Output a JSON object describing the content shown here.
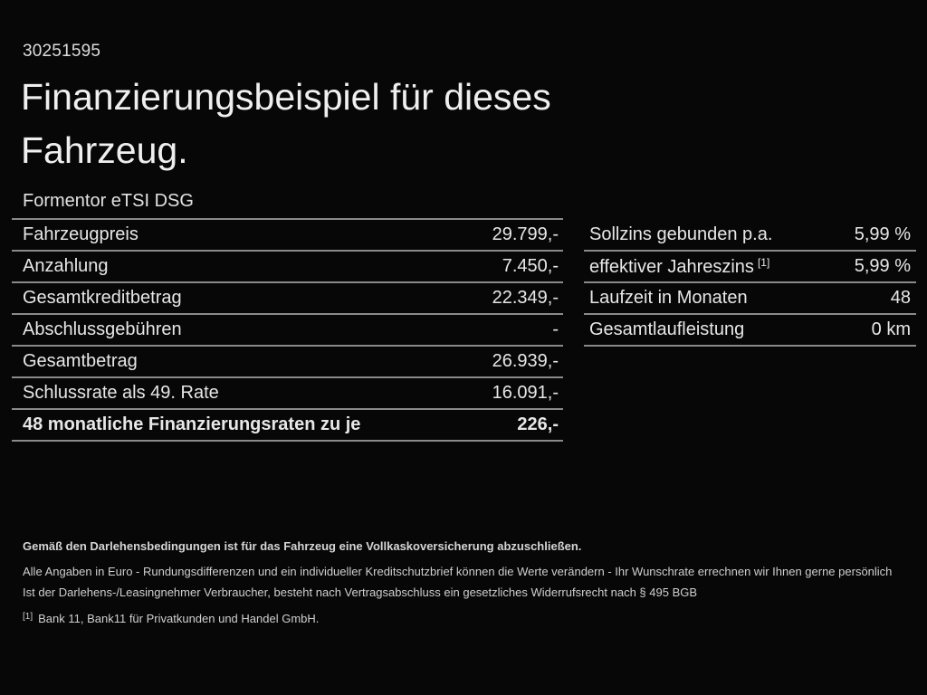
{
  "colors": {
    "background": "#070707",
    "text": "#e7e7e7",
    "separator": "#8a8a8a",
    "muted": "#d6d6d6"
  },
  "header": {
    "document_number": "30251595",
    "title": "Finanzierungsbeispiel für dieses Fahrzeug.",
    "vehicle_model": "Formentor eTSI DSG"
  },
  "financing_table": {
    "rows": [
      {
        "label": "Fahrzeugpreis",
        "value": "29.799,-"
      },
      {
        "label": "Anzahlung",
        "value": "7.450,-"
      },
      {
        "label": "Gesamtkreditbetrag",
        "value": "22.349,-"
      },
      {
        "label": "Abschlussgebühren",
        "value": "-"
      },
      {
        "label": "Gesamtbetrag",
        "value": "26.939,-"
      },
      {
        "label": "Schlussrate als 49. Rate",
        "value": "16.091,-"
      },
      {
        "label": "48 monatliche Finanzierungsraten zu je",
        "value": "226,-",
        "bold": true
      }
    ]
  },
  "conditions_table": {
    "rows": [
      {
        "label": "Sollzins gebunden p.a.",
        "value": "5,99 %"
      },
      {
        "label": "effektiver Jahreszins",
        "footnote_ref": "[1]",
        "value": "5,99 %"
      },
      {
        "label": "Laufzeit in Monaten",
        "value": "48"
      },
      {
        "label": "Gesamtlaufleistung",
        "value": "0 km"
      }
    ]
  },
  "footer": {
    "insurance_note": "Gemäß den Darlehensbedingungen ist für das Fahrzeug eine Vollkaskoversicherung abzuschließen.",
    "disclaimer_line1": "Alle Angaben in Euro - Rundungsdifferenzen und ein individueller Kreditschutzbrief können die Werte verändern - Ihr Wunschrate errechnen wir Ihnen gerne persönlich",
    "disclaimer_line2": "Ist der Darlehens-/Leasingnehmer Verbraucher, besteht nach Vertragsabschluss ein gesetzliches Widerrufsrecht nach § 495 BGB",
    "footnote_marker": "[1]",
    "footnote_text": "Bank 11, Bank11 für Privatkunden und Handel GmbH."
  }
}
